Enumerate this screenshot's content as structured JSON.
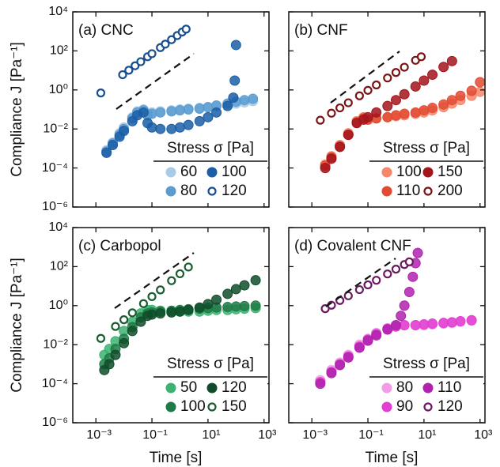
{
  "chart_data": [
    {
      "type": "scatter",
      "title": "(a) CNC",
      "ylabel": "Compliance J [Pa⁻¹]",
      "legend_title": "Stress σ [Pa]",
      "xscale": "log",
      "yscale": "log",
      "xlim": [
        0.00015,
        1500
      ],
      "ylim": [
        1e-06,
        10000
      ],
      "xticks": [
        0.001,
        0.1,
        10,
        1000
      ],
      "show_xtick_labels": false,
      "yticks": [
        {
          "value": 10000,
          "label": "10⁴"
        },
        {
          "value": 100,
          "label": "10²"
        },
        {
          "value": 1,
          "label": "10⁰"
        },
        {
          "value": 0.01,
          "label": "10⁻²"
        },
        {
          "value": 0.0001,
          "label": "10⁻⁴"
        },
        {
          "value": 1e-06,
          "label": "10⁻⁶"
        }
      ],
      "show_ytick_labels": true,
      "series": [
        {
          "name": "60",
          "color": "#a9cbe8",
          "marker": "filled",
          "x": [
            0.0024,
            0.004,
            0.007,
            0.01,
            0.02,
            0.03,
            0.05,
            0.07,
            0.1,
            0.2,
            0.5,
            1,
            2,
            5,
            10,
            20,
            50,
            100,
            200,
            400
          ],
          "values": [
            0.0008,
            0.002,
            0.006,
            0.012,
            0.04,
            0.08,
            0.1,
            0.06,
            0.07,
            0.08,
            0.09,
            0.1,
            0.11,
            0.12,
            0.13,
            0.15,
            0.18,
            0.2,
            0.23,
            0.27
          ]
        },
        {
          "name": "80",
          "color": "#5b9bd0",
          "marker": "filled",
          "x": [
            0.0024,
            0.004,
            0.007,
            0.01,
            0.02,
            0.03,
            0.05,
            0.07,
            0.1,
            0.2,
            0.5,
            1,
            2,
            5,
            10,
            20,
            50,
            100,
            200,
            400
          ],
          "values": [
            0.0007,
            0.0018,
            0.005,
            0.01,
            0.035,
            0.07,
            0.09,
            0.05,
            0.06,
            0.07,
            0.08,
            0.09,
            0.1,
            0.11,
            0.13,
            0.16,
            0.2,
            0.25,
            0.3,
            0.35
          ]
        },
        {
          "name": "100",
          "color": "#1a5ea6",
          "marker": "filled",
          "x": [
            0.0024,
            0.004,
            0.007,
            0.01,
            0.02,
            0.03,
            0.05,
            0.07,
            0.1,
            0.2,
            0.5,
            1,
            2,
            5,
            10,
            20,
            50,
            80,
            90,
            100
          ],
          "values": [
            0.0006,
            0.0015,
            0.004,
            0.008,
            0.025,
            0.05,
            0.07,
            0.02,
            0.012,
            0.01,
            0.01,
            0.012,
            0.016,
            0.025,
            0.04,
            0.07,
            0.15,
            0.4,
            3,
            200
          ]
        },
        {
          "name": "120",
          "color": "#1a4f8f",
          "marker": "open",
          "x": [
            0.0015,
            0.009,
            0.015,
            0.025,
            0.04,
            0.07,
            0.1,
            0.2,
            0.3,
            0.5,
            0.8,
            1.2,
            1.66
          ],
          "values": [
            0.7,
            6,
            10.2,
            17.3,
            28,
            50,
            72,
            147,
            222,
            375,
            610,
            930,
            1300
          ]
        }
      ]
    },
    {
      "type": "scatter",
      "title": "(b) CNF",
      "legend_title": "Stress σ [Pa]",
      "xscale": "log",
      "yscale": "log",
      "xlim": [
        0.00015,
        1500
      ],
      "ylim": [
        1e-06,
        10000
      ],
      "xticks": [
        0.001,
        0.1,
        10,
        1000
      ],
      "show_xtick_labels": false,
      "yticks": [
        10000,
        100,
        1,
        0.01,
        0.0001,
        1e-06
      ],
      "show_ytick_labels": false,
      "series": [
        {
          "name": "100",
          "color": "#f4866a",
          "marker": "filled",
          "x": [
            0.003,
            0.005,
            0.01,
            0.02,
            0.04,
            0.07,
            0.1,
            0.2,
            0.5,
            1,
            2,
            5,
            10,
            20,
            50,
            100,
            200,
            500,
            1000
          ],
          "values": [
            0.00015,
            0.0004,
            0.0015,
            0.006,
            0.025,
            0.04,
            0.03,
            0.035,
            0.04,
            0.045,
            0.05,
            0.06,
            0.07,
            0.09,
            0.13,
            0.2,
            0.3,
            0.5,
            0.8
          ]
        },
        {
          "name": "110",
          "color": "#e24a33",
          "marker": "filled",
          "x": [
            0.003,
            0.005,
            0.01,
            0.02,
            0.04,
            0.07,
            0.1,
            0.2,
            0.5,
            1,
            2,
            5,
            10,
            20,
            50,
            100,
            200,
            500,
            1000
          ],
          "values": [
            0.00013,
            0.00035,
            0.0013,
            0.005,
            0.022,
            0.035,
            0.03,
            0.035,
            0.04,
            0.05,
            0.06,
            0.07,
            0.09,
            0.12,
            0.18,
            0.3,
            0.5,
            0.9,
            2.5
          ]
        },
        {
          "name": "150",
          "color": "#a3141c",
          "marker": "filled",
          "x": [
            0.003,
            0.005,
            0.01,
            0.02,
            0.04,
            0.07,
            0.1,
            0.2,
            0.5,
            1,
            2,
            5,
            10,
            20,
            50,
            100
          ],
          "values": [
            0.0001,
            0.0003,
            0.0012,
            0.005,
            0.02,
            0.03,
            0.04,
            0.07,
            0.15,
            0.3,
            0.6,
            1.5,
            3,
            6,
            15,
            30
          ]
        },
        {
          "name": "200",
          "color": "#7a1414",
          "marker": "open",
          "x": [
            0.002,
            0.005,
            0.01,
            0.02,
            0.05,
            0.1,
            0.2,
            0.5,
            1,
            2,
            5,
            8
          ],
          "values": [
            0.028,
            0.064,
            0.12,
            0.22,
            0.5,
            0.95,
            1.8,
            4.1,
            7.8,
            14.6,
            33,
            50
          ]
        }
      ]
    },
    {
      "type": "scatter",
      "title": "(c) Carbopol",
      "ylabel": "Compliance J [Pa⁻¹]",
      "xlabel": "Time [s]",
      "legend_title": "Stress σ [Pa]",
      "xscale": "log",
      "yscale": "log",
      "xlim": [
        0.00015,
        1500
      ],
      "ylim": [
        1e-06,
        10000
      ],
      "xticks": [
        {
          "value": 0.001,
          "label": "10⁻³"
        },
        {
          "value": 0.1,
          "label": "10⁻¹"
        },
        {
          "value": 10,
          "label": "10¹"
        },
        {
          "value": 1000,
          "label": "10³"
        }
      ],
      "show_xtick_labels": true,
      "yticks": [
        {
          "value": 10000,
          "label": "10⁴"
        },
        {
          "value": 100,
          "label": "10²"
        },
        {
          "value": 1,
          "label": "10⁰"
        },
        {
          "value": 0.01,
          "label": "10⁻²"
        },
        {
          "value": 0.0001,
          "label": "10⁻⁴"
        },
        {
          "value": 1e-06,
          "label": "10⁻⁶"
        }
      ],
      "show_ytick_labels": true,
      "series": [
        {
          "name": "50",
          "color": "#3cb371",
          "marker": "filled",
          "x": [
            0.002,
            0.003,
            0.005,
            0.01,
            0.02,
            0.04,
            0.07,
            0.1,
            0.2,
            0.5,
            1,
            2,
            5,
            10,
            20,
            50,
            100,
            200,
            500
          ],
          "values": [
            0.003,
            0.006,
            0.015,
            0.05,
            0.15,
            0.4,
            0.6,
            0.6,
            0.55,
            0.5,
            0.5,
            0.5,
            0.5,
            0.55,
            0.6,
            0.6,
            0.65,
            0.7,
            0.75
          ]
        },
        {
          "name": "100",
          "color": "#1f7a45",
          "marker": "filled",
          "x": [
            0.002,
            0.003,
            0.005,
            0.01,
            0.02,
            0.04,
            0.07,
            0.1,
            0.2,
            0.5,
            1,
            2,
            5,
            10,
            20,
            50,
            100,
            200,
            500
          ],
          "values": [
            0.001,
            0.002,
            0.006,
            0.02,
            0.08,
            0.25,
            0.4,
            0.45,
            0.5,
            0.55,
            0.6,
            0.65,
            0.7,
            0.75,
            0.8,
            0.85,
            0.9,
            0.95,
            1.0
          ]
        },
        {
          "name": "120",
          "color": "#0f4d2a",
          "marker": "filled",
          "x": [
            0.002,
            0.003,
            0.005,
            0.01,
            0.02,
            0.04,
            0.07,
            0.1,
            0.2,
            0.5,
            1,
            2,
            5,
            10,
            20,
            50,
            100,
            200,
            500
          ],
          "values": [
            0.0005,
            0.001,
            0.003,
            0.012,
            0.05,
            0.15,
            0.3,
            0.35,
            0.4,
            0.45,
            0.5,
            0.6,
            0.8,
            1.2,
            2,
            4,
            7,
            11,
            20
          ]
        },
        {
          "name": "150",
          "color": "#1a5c30",
          "marker": "open",
          "x": [
            0.0015,
            0.005,
            0.01,
            0.02,
            0.05,
            0.1,
            0.2,
            0.5,
            1,
            2
          ],
          "values": [
            0.021,
            0.086,
            0.19,
            0.43,
            1.27,
            2.9,
            6.4,
            19,
            43,
            95
          ]
        }
      ]
    },
    {
      "type": "scatter",
      "title": "(d) Covalent CNF",
      "xlabel": "Time [s]",
      "legend_title": "Stress σ [Pa]",
      "xscale": "log",
      "yscale": "log",
      "xlim": [
        0.00015,
        1500
      ],
      "ylim": [
        1e-06,
        10000
      ],
      "xticks": [
        {
          "value": 0.001,
          "label": "10⁻³"
        },
        {
          "value": 0.1,
          "label": "10⁻¹"
        },
        {
          "value": 10,
          "label": "10¹"
        },
        {
          "value": 1000,
          "label": "10³"
        }
      ],
      "show_xtick_labels": true,
      "yticks": [
        10000,
        100,
        1,
        0.01,
        0.0001,
        1e-06
      ],
      "show_ytick_labels": false,
      "series": [
        {
          "name": "80",
          "color": "#f29be6",
          "marker": "filled",
          "x": [
            0.002,
            0.005,
            0.01,
            0.02,
            0.05,
            0.1,
            0.2,
            0.5,
            1,
            2,
            5,
            10,
            20,
            50,
            100,
            200,
            500
          ],
          "values": [
            0.00015,
            0.0005,
            0.0012,
            0.003,
            0.01,
            0.02,
            0.04,
            0.07,
            0.09,
            0.1,
            0.1,
            0.1,
            0.11,
            0.12,
            0.13,
            0.15,
            0.17
          ]
        },
        {
          "name": "90",
          "color": "#e03fd2",
          "marker": "filled",
          "x": [
            0.002,
            0.005,
            0.01,
            0.02,
            0.05,
            0.1,
            0.2,
            0.5,
            1,
            2,
            5,
            10,
            20,
            50,
            100,
            200,
            500
          ],
          "values": [
            0.00012,
            0.0004,
            0.001,
            0.0025,
            0.008,
            0.018,
            0.035,
            0.065,
            0.085,
            0.1,
            0.1,
            0.11,
            0.12,
            0.13,
            0.14,
            0.16,
            0.18
          ]
        },
        {
          "name": "110",
          "color": "#b022ad",
          "marker": "filled",
          "x": [
            0.002,
            0.005,
            0.01,
            0.02,
            0.05,
            0.1,
            0.2,
            0.5,
            1,
            1.5,
            2,
            3,
            4,
            5,
            6
          ],
          "values": [
            0.0001,
            0.00035,
            0.0009,
            0.0022,
            0.007,
            0.016,
            0.03,
            0.06,
            0.1,
            0.3,
            1,
            5,
            30,
            150,
            500
          ]
        },
        {
          "name": "120",
          "color": "#6a1a60",
          "marker": "open",
          "x": [
            0.003,
            0.005,
            0.01,
            0.02,
            0.05,
            0.1,
            0.2,
            0.5,
            1,
            2,
            3
          ],
          "values": [
            0.7,
            1.05,
            1.84,
            3.2,
            6.6,
            11.6,
            20,
            42,
            74,
            128,
            175
          ]
        }
      ]
    }
  ]
}
